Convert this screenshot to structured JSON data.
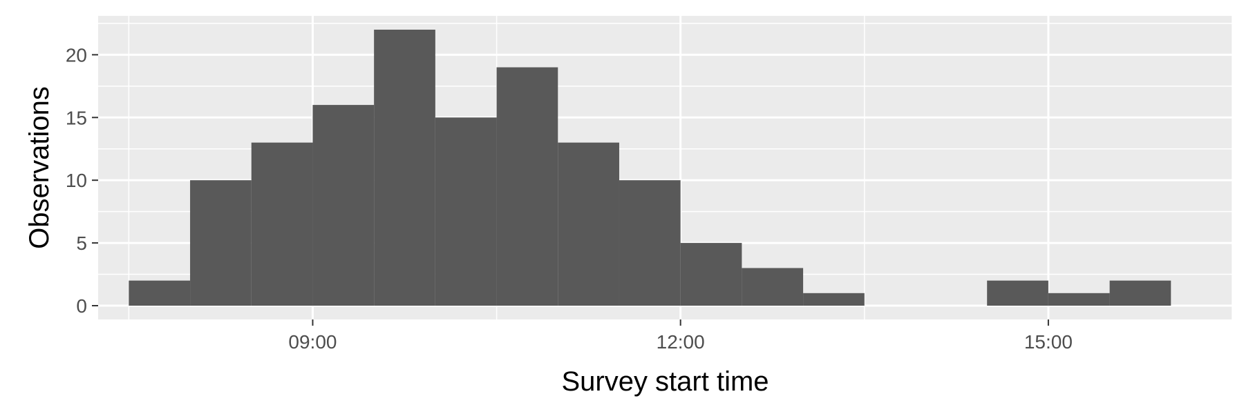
{
  "chart_data": {
    "type": "bar",
    "title": "",
    "xlabel": "Survey start time",
    "ylabel": "Observations",
    "x_unit": "hours (clock time)",
    "bin_width_hours": 0.5,
    "bins": [
      {
        "start": "07:30",
        "end": "08:00",
        "count": 2
      },
      {
        "start": "08:00",
        "end": "08:30",
        "count": 10
      },
      {
        "start": "08:30",
        "end": "09:00",
        "count": 13
      },
      {
        "start": "09:00",
        "end": "09:30",
        "count": 16
      },
      {
        "start": "09:30",
        "end": "10:00",
        "count": 22
      },
      {
        "start": "10:00",
        "end": "10:30",
        "count": 15
      },
      {
        "start": "10:30",
        "end": "11:00",
        "count": 19
      },
      {
        "start": "11:00",
        "end": "11:30",
        "count": 13
      },
      {
        "start": "11:30",
        "end": "12:00",
        "count": 10
      },
      {
        "start": "12:00",
        "end": "12:30",
        "count": 5
      },
      {
        "start": "12:30",
        "end": "13:00",
        "count": 3
      },
      {
        "start": "13:00",
        "end": "13:30",
        "count": 1
      },
      {
        "start": "14:30",
        "end": "15:00",
        "count": 2
      },
      {
        "start": "15:00",
        "end": "15:30",
        "count": 1
      },
      {
        "start": "15:30",
        "end": "16:00",
        "count": 2
      }
    ],
    "xlim": [
      "07:15",
      "16:30"
    ],
    "ylim": [
      -1.1,
      23.1
    ],
    "x_ticks": [
      "09:00",
      "12:00",
      "15:00"
    ],
    "y_ticks": [
      0,
      5,
      10,
      15,
      20
    ],
    "bar_color": "#595959",
    "panel_background": "#ebebeb",
    "grid": true,
    "legend": "none"
  }
}
